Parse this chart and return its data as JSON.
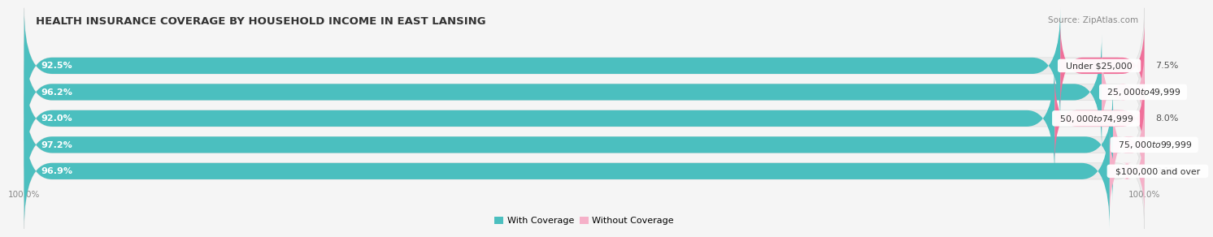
{
  "title": "HEALTH INSURANCE COVERAGE BY HOUSEHOLD INCOME IN EAST LANSING",
  "source": "Source: ZipAtlas.com",
  "categories": [
    "Under $25,000",
    "$25,000 to $49,999",
    "$50,000 to $74,999",
    "$75,000 to $99,999",
    "$100,000 and over"
  ],
  "with_coverage": [
    92.5,
    96.2,
    92.0,
    97.2,
    96.9
  ],
  "without_coverage": [
    7.5,
    3.8,
    8.0,
    2.8,
    3.1
  ],
  "color_with": "#4bbfbf",
  "color_without": "#f07aaa",
  "color_without_light": "#f5a0c0",
  "bar_bg_color": "#ebebeb",
  "bar_height": 0.62,
  "row_gap_color": "#f5f5f5",
  "legend_with": "With Coverage",
  "legend_without": "Without Coverage",
  "title_fontsize": 9.5,
  "source_fontsize": 7.5,
  "label_fontsize": 8.0,
  "category_fontsize": 7.8,
  "tick_fontsize": 7.5
}
